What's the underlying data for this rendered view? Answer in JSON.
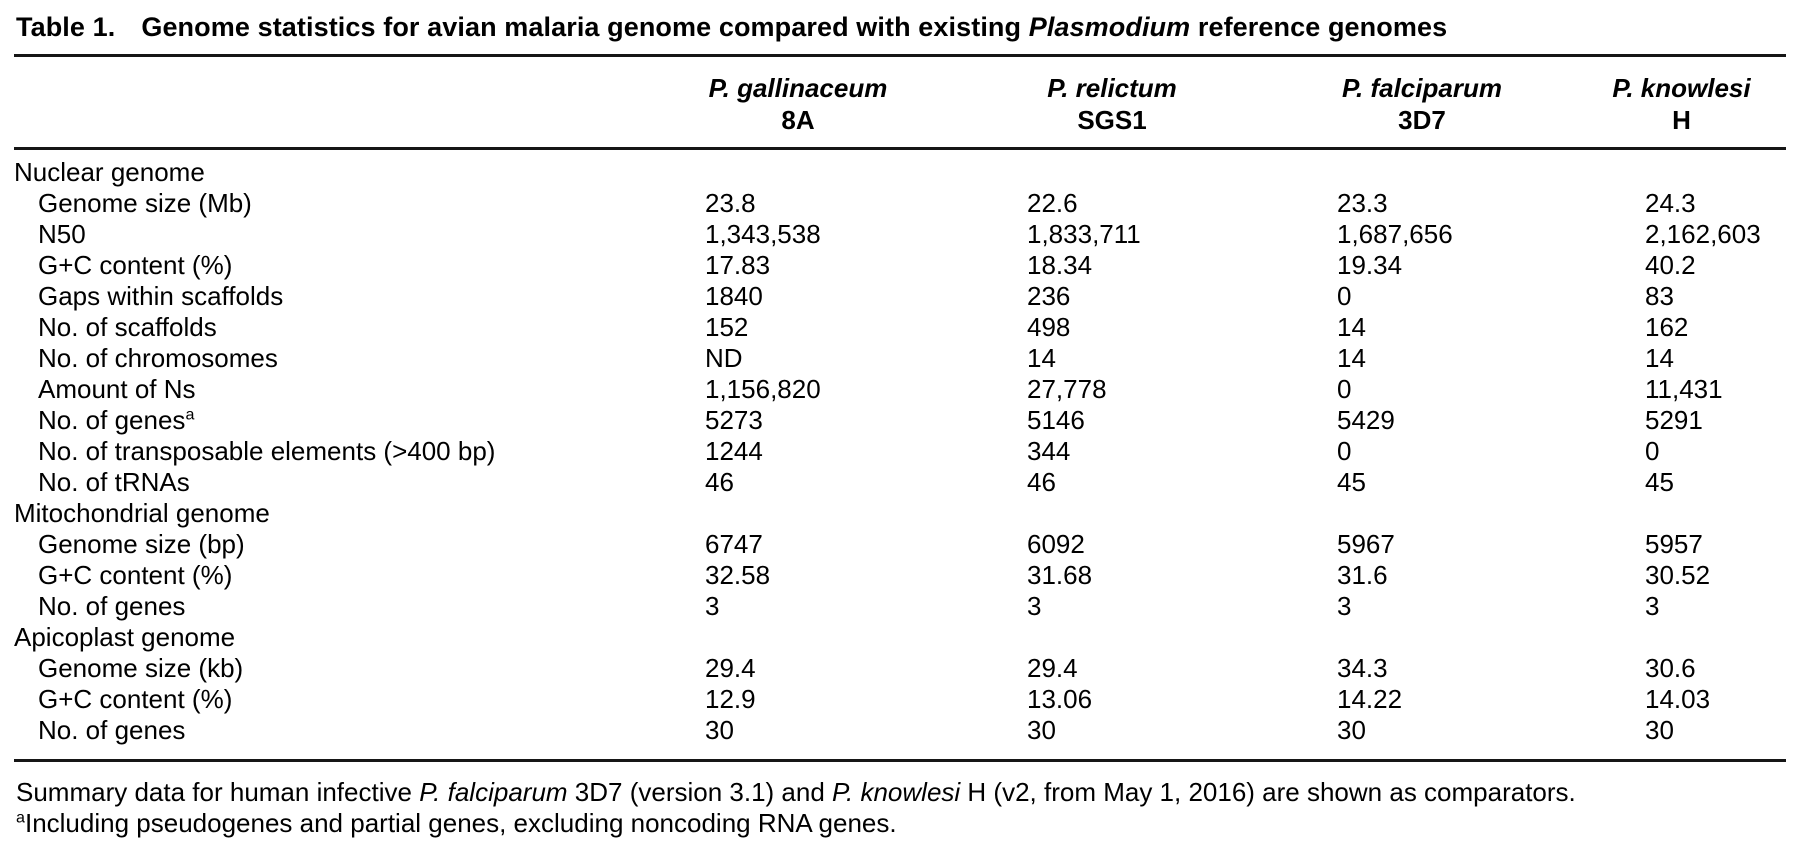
{
  "title": {
    "label": "Table 1.",
    "caption_segments": [
      {
        "text": "Genome statistics for avian malaria genome compared with existing ",
        "italic": false
      },
      {
        "text": "Plasmodium",
        "italic": true
      },
      {
        "text": " reference genomes",
        "italic": false
      }
    ]
  },
  "table": {
    "columns": [
      {
        "species": "P. gallinaceum",
        "strain": "8A"
      },
      {
        "species": "P. relictum",
        "strain": "SGS1"
      },
      {
        "species": "P. falciparum",
        "strain": "3D7"
      },
      {
        "species": "P. knowlesi",
        "strain": "H"
      }
    ],
    "rows": [
      {
        "type": "section",
        "label": "Nuclear genome",
        "values": [
          "",
          "",
          "",
          ""
        ]
      },
      {
        "type": "data",
        "label": "Genome size (Mb)",
        "values": [
          "23.8",
          "22.6",
          "23.3",
          "24.3"
        ]
      },
      {
        "type": "data",
        "label": "N50",
        "values": [
          "1,343,538",
          "1,833,711",
          "1,687,656",
          "2,162,603"
        ]
      },
      {
        "type": "data",
        "label": "G+C content (%)",
        "values": [
          "17.83",
          "18.34",
          "19.34",
          "40.2"
        ]
      },
      {
        "type": "data",
        "label": "Gaps within scaffolds",
        "values": [
          "1840",
          "236",
          "0",
          "83"
        ]
      },
      {
        "type": "data",
        "label": "No. of scaffolds",
        "values": [
          "152",
          "498",
          "14",
          "162"
        ]
      },
      {
        "type": "data",
        "label": "No. of chromosomes",
        "values": [
          "ND",
          "14",
          "14",
          "14"
        ]
      },
      {
        "type": "data",
        "label": "Amount of Ns",
        "values": [
          "1,156,820",
          "27,778",
          "0",
          "11,431"
        ]
      },
      {
        "type": "data",
        "label": "No. of genes",
        "sup": "a",
        "values": [
          "5273",
          "5146",
          "5429",
          "5291"
        ]
      },
      {
        "type": "data",
        "label": "No. of transposable elements (>400 bp)",
        "values": [
          "1244",
          "344",
          "0",
          "0"
        ]
      },
      {
        "type": "data",
        "label": "No. of tRNAs",
        "values": [
          "46",
          "46",
          "45",
          "45"
        ]
      },
      {
        "type": "section",
        "label": "Mitochondrial genome",
        "values": [
          "",
          "",
          "",
          ""
        ]
      },
      {
        "type": "data",
        "label": "Genome size (bp)",
        "values": [
          "6747",
          "6092",
          "5967",
          "5957"
        ]
      },
      {
        "type": "data",
        "label": "G+C content (%)",
        "values": [
          "32.58",
          "31.68",
          "31.6",
          "30.52"
        ]
      },
      {
        "type": "data",
        "label": "No. of genes",
        "values": [
          "3",
          "3",
          "3",
          "3"
        ]
      },
      {
        "type": "section",
        "label": "Apicoplast genome",
        "values": [
          "",
          "",
          "",
          ""
        ]
      },
      {
        "type": "data",
        "label": "Genome size (kb)",
        "values": [
          "29.4",
          "29.4",
          "34.3",
          "30.6"
        ]
      },
      {
        "type": "data",
        "label": "G+C content (%)",
        "values": [
          "12.9",
          "13.06",
          "14.22",
          "14.03"
        ]
      },
      {
        "type": "data",
        "label": "No. of genes",
        "values": [
          "30",
          "30",
          "30",
          "30"
        ]
      }
    ]
  },
  "footnotes": {
    "line1_segments": [
      {
        "text": "Summary data for human infective ",
        "italic": false
      },
      {
        "text": "P. falciparum",
        "italic": true
      },
      {
        "text": " 3D7 (version 3.1) and ",
        "italic": false
      },
      {
        "text": "P. knowlesi",
        "italic": true
      },
      {
        "text": " H (v2, from May 1, 2016) are shown as comparators.",
        "italic": false
      }
    ],
    "line2": {
      "sup": "a",
      "text": "Including pseudogenes and partial genes, excluding noncoding RNA genes."
    }
  },
  "colors": {
    "background": "#ffffff",
    "text": "#000000",
    "rule": "#161616"
  }
}
